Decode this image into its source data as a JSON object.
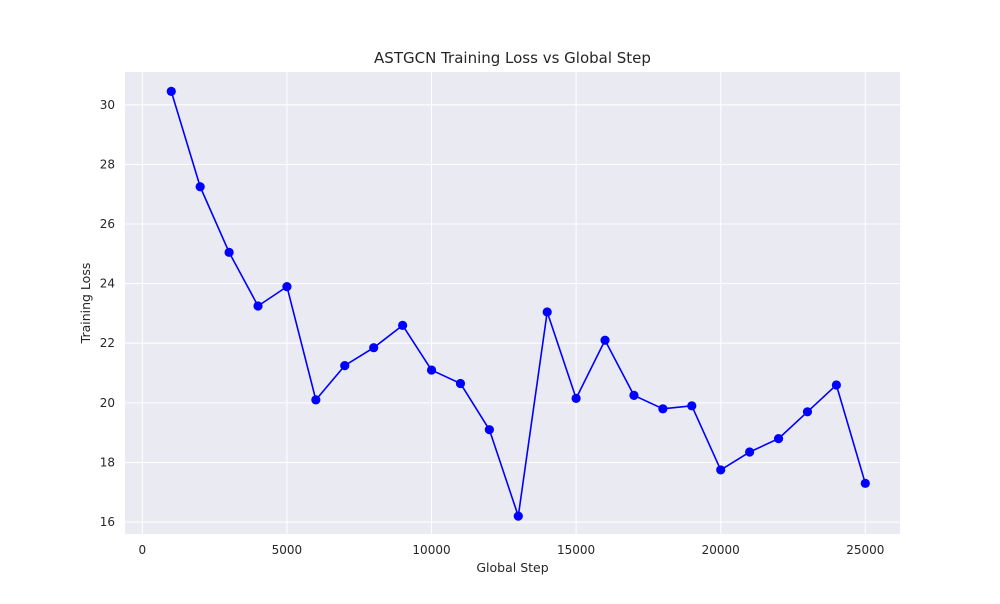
{
  "chart_data": {
    "type": "line",
    "title": "ASTGCN Training Loss vs Global Step",
    "xlabel": "Global Step",
    "ylabel": "Training Loss",
    "xlim": [
      -600,
      26200
    ],
    "ylim": [
      15.6,
      31.1
    ],
    "xticks": [
      0,
      5000,
      10000,
      15000,
      20000,
      25000
    ],
    "xtick_labels": [
      "0",
      "5000",
      "10000",
      "15000",
      "20000",
      "25000"
    ],
    "yticks": [
      16,
      18,
      20,
      22,
      24,
      26,
      28,
      30
    ],
    "ytick_labels": [
      "16",
      "18",
      "20",
      "22",
      "24",
      "26",
      "28",
      "30"
    ],
    "grid": true,
    "legend": "none",
    "style": {
      "background": "#eaeaf2",
      "grid_color": "#ffffff",
      "line_color": "#0000ff",
      "marker": "circle"
    },
    "series": [
      {
        "x": [
          1000,
          2000,
          3000,
          4000,
          5000,
          6000,
          7000,
          8000,
          9000,
          10000,
          11000,
          12000,
          13000,
          14000,
          15000,
          16000,
          17000,
          18000,
          19000,
          20000,
          21000,
          22000,
          23000,
          24000,
          25000
        ],
        "values": [
          30.45,
          27.25,
          25.05,
          23.25,
          23.9,
          20.1,
          21.25,
          21.85,
          22.6,
          21.1,
          20.65,
          19.1,
          16.2,
          23.05,
          20.15,
          22.1,
          20.25,
          19.8,
          19.9,
          17.75,
          18.35,
          18.8,
          19.7,
          20.6,
          17.3
        ]
      }
    ]
  }
}
